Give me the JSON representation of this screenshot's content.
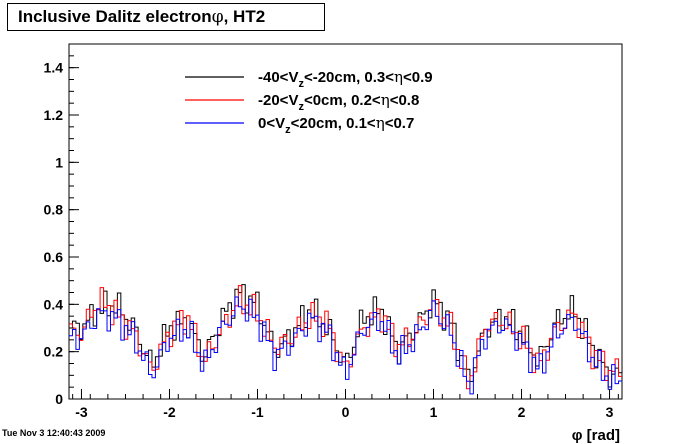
{
  "title": {
    "prefix": "Inclusive Dalitz electron",
    "symbol": "φ",
    "suffix": ", HT2"
  },
  "timestamp": "Tue Nov  3 12:40:43 2009",
  "chart_data": {
    "type": "line",
    "step": true,
    "xlim": [
      -3.1416,
      3.1416
    ],
    "ylim": [
      0,
      1.5
    ],
    "xlabel": "φ [rad]",
    "ylabel": "",
    "xticks": [
      -3,
      -2,
      -1,
      0,
      1,
      2,
      3
    ],
    "yticks": [
      0,
      0.2,
      0.4,
      0.6,
      0.8,
      1,
      1.2,
      1.4
    ],
    "ytick_labels": [
      "0",
      "0.2",
      "0.4",
      "0.6",
      "0.8",
      "1",
      "1.2",
      "1.4"
    ],
    "xtick_labels": [
      "-3",
      "-2",
      "-1",
      "0",
      "1",
      "2",
      "3"
    ],
    "grid": false,
    "legend_position": "top-center",
    "x": [
      -3.0,
      -2.8,
      -2.6,
      -2.4,
      -2.2,
      -2.0,
      -1.8,
      -1.6,
      -1.4,
      -1.2,
      -1.0,
      -0.8,
      -0.6,
      -0.4,
      -0.2,
      0.0,
      0.2,
      0.4,
      0.6,
      0.8,
      1.0,
      1.2,
      1.4,
      1.6,
      1.8,
      2.0,
      2.2,
      2.4,
      2.6,
      2.8,
      3.0
    ],
    "series": [
      {
        "name": "-40<V_{z}<-20cm, 0.3<η<0.9",
        "legend": {
          "main1": "-40<V",
          "sub": "z",
          "main2": "<-20cm, 0.3<",
          "sym": "η",
          "main3": "<0.9"
        },
        "color": "#000000",
        "values": [
          0.3,
          0.38,
          0.4,
          0.3,
          0.14,
          0.3,
          0.33,
          0.18,
          0.34,
          0.45,
          0.4,
          0.2,
          0.28,
          0.38,
          0.3,
          0.14,
          0.34,
          0.38,
          0.2,
          0.3,
          0.42,
          0.32,
          0.07,
          0.3,
          0.35,
          0.28,
          0.16,
          0.33,
          0.38,
          0.22,
          0.1
        ]
      },
      {
        "name": "-20<V_{z}<0cm, 0.2<η<0.8",
        "legend": {
          "main1": "-20<V",
          "sub": "z",
          "main2": "<0cm, 0.2<",
          "sym": "η",
          "main3": "<0.8"
        },
        "color": "#ff0000",
        "values": [
          0.28,
          0.42,
          0.36,
          0.28,
          0.12,
          0.28,
          0.35,
          0.16,
          0.3,
          0.42,
          0.36,
          0.22,
          0.26,
          0.35,
          0.32,
          0.12,
          0.3,
          0.36,
          0.22,
          0.28,
          0.4,
          0.3,
          0.06,
          0.32,
          0.33,
          0.26,
          0.14,
          0.3,
          0.36,
          0.2,
          0.12
        ]
      },
      {
        "name": "0<V_{z}<20cm, 0.1<η<0.7",
        "legend": {
          "main1": "0<V",
          "sub": "z",
          "main2": "<20cm, 0.1<",
          "sym": "η",
          "main3": "<0.7"
        },
        "color": "#0000ff",
        "values": [
          0.26,
          0.36,
          0.34,
          0.26,
          0.1,
          0.26,
          0.3,
          0.14,
          0.3,
          0.4,
          0.34,
          0.18,
          0.24,
          0.34,
          0.28,
          0.1,
          0.3,
          0.34,
          0.18,
          0.26,
          0.38,
          0.28,
          0.05,
          0.28,
          0.32,
          0.24,
          0.12,
          0.28,
          0.34,
          0.18,
          0.08
        ]
      }
    ]
  }
}
